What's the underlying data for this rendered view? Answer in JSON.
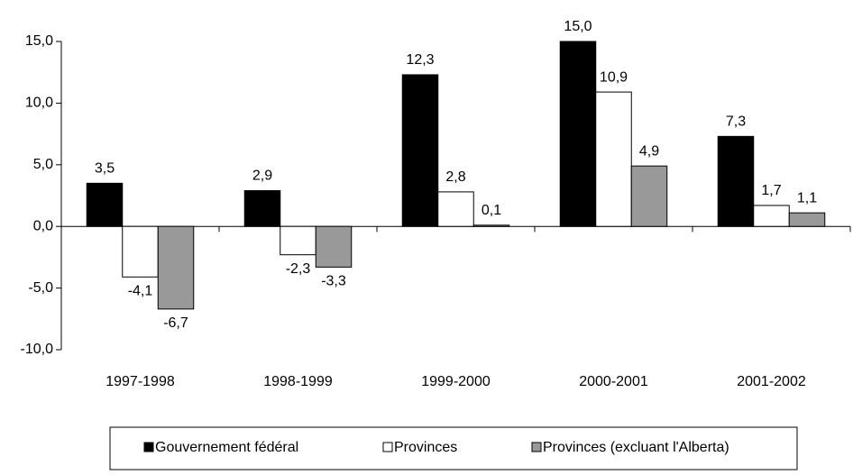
{
  "chart_data": {
    "type": "bar",
    "categories": [
      "1997-1998",
      "1998-1999",
      "1999-2000",
      "2000-2001",
      "2001-2002"
    ],
    "series": [
      {
        "name": "Gouvernement fédéral",
        "color": "#000000",
        "values": [
          3.5,
          2.9,
          12.3,
          15.0,
          7.3
        ],
        "value_labels": [
          "3,5",
          "2,9",
          "12,3",
          "15,0",
          "7,3"
        ]
      },
      {
        "name": "Provinces",
        "color": "#ffffff",
        "values": [
          -4.1,
          -2.3,
          2.8,
          10.9,
          1.7
        ],
        "value_labels": [
          "-4,1",
          "-2,3",
          "2,8",
          "10,9",
          "1,7"
        ]
      },
      {
        "name": "Provinces (excluant l'Alberta)",
        "color": "#999999",
        "values": [
          -6.7,
          -3.3,
          0.1,
          4.9,
          1.1
        ],
        "value_labels": [
          "-6,7",
          "-3,3",
          "0,1",
          "4,9",
          "1,1"
        ]
      }
    ],
    "ylim": [
      -10,
      15
    ],
    "yticks": [
      {
        "value": -10,
        "label": "-10,0"
      },
      {
        "value": -5,
        "label": "-5,0"
      },
      {
        "value": 0,
        "label": "0,0"
      },
      {
        "value": 5,
        "label": "5,0"
      },
      {
        "value": 10,
        "label": "10,0"
      },
      {
        "value": 15,
        "label": "15,0"
      }
    ],
    "grid": false,
    "legend": "bottom"
  }
}
